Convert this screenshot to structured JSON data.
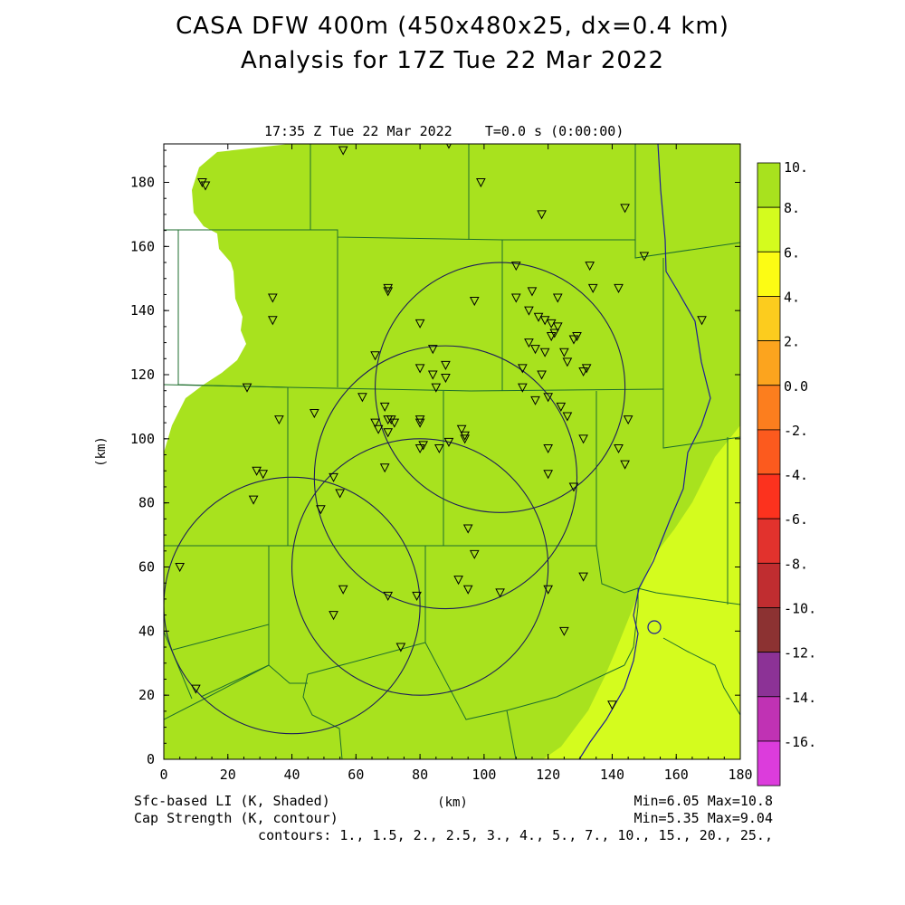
{
  "title_line1": "CASA DFW 400m (450x480x25, dx=0.4 km)",
  "title_line2": "Analysis for 17Z Tue 22 Mar 2022",
  "valid_time": "17:35 Z Tue 22 Mar 2022    T=0.0 s (0:00:00)",
  "x_axis": {
    "label": "(km)",
    "range": [
      0,
      180
    ],
    "ticks": [
      "0",
      "20",
      "40",
      "60",
      "80",
      "100",
      "120",
      "140",
      "160",
      "180"
    ]
  },
  "y_axis": {
    "label": "(km)",
    "range": [
      0,
      192
    ],
    "ticks": [
      "0",
      "20",
      "40",
      "60",
      "80",
      "100",
      "120",
      "140",
      "160",
      "180"
    ]
  },
  "footer": {
    "shaded_label": "Sfc-based LI (K, Shaded)",
    "contour_label": "Cap Strength (K, contour)",
    "shaded_stats": "Min=6.05 Max=10.8",
    "contour_stats": "Min=5.35 Max=9.04",
    "contour_levels": "contours: 1., 1.5, 2., 2.5, 3., 4., 5., 7., 10., 15., 20., 25.,"
  },
  "colorbar": {
    "labels": [
      "10.",
      "8.",
      "6.",
      "4.",
      "2.",
      "0.0",
      "-2.",
      "-4.",
      "-6.",
      "-8.",
      "-10.",
      "-12.",
      "-14.",
      "-16."
    ],
    "colors": [
      "#a8e21e",
      "#d4fc1e",
      "#fcfc14",
      "#fccc1e",
      "#fca41e",
      "#fc7e1e",
      "#fc5a1e",
      "#fc321e",
      "#e2322d",
      "#c02d30",
      "#8c3232",
      "#8c3296",
      "#c032b4",
      "#dc3cdc"
    ]
  },
  "map_colors": {
    "background_field": "#a8e21e",
    "warm_field": "#d4fc1e",
    "county_lines": "#1e6e2d",
    "river": "#1e1e96",
    "radar_rings": "#1e1e5a",
    "no_data": "#ffffff"
  },
  "radar_rings_km": [
    {
      "cx": 105,
      "cy": 116,
      "r": 39
    },
    {
      "cx": 88,
      "cy": 88,
      "r": 41
    },
    {
      "cx": 40,
      "cy": 48,
      "r": 40
    },
    {
      "cx": 80,
      "cy": 60,
      "r": 40
    }
  ],
  "stations_km": [
    [
      12,
      180
    ],
    [
      13,
      179
    ],
    [
      56,
      190
    ],
    [
      89,
      192
    ],
    [
      99,
      180
    ],
    [
      118,
      170
    ],
    [
      144,
      172
    ],
    [
      150,
      157
    ],
    [
      34,
      144
    ],
    [
      34,
      137
    ],
    [
      70,
      147
    ],
    [
      70,
      146
    ],
    [
      80,
      136
    ],
    [
      84,
      128
    ],
    [
      88,
      123
    ],
    [
      80,
      122
    ],
    [
      84,
      120
    ],
    [
      85,
      116
    ],
    [
      88,
      119
    ],
    [
      97,
      143
    ],
    [
      110,
      154
    ],
    [
      110,
      144
    ],
    [
      114,
      140
    ],
    [
      115,
      146
    ],
    [
      123,
      144
    ],
    [
      133,
      154
    ],
    [
      134,
      147
    ],
    [
      142,
      147
    ],
    [
      114,
      130
    ],
    [
      116,
      128
    ],
    [
      119,
      127
    ],
    [
      117,
      138
    ],
    [
      119,
      137
    ],
    [
      121,
      136
    ],
    [
      122,
      133
    ],
    [
      121,
      132
    ],
    [
      123,
      135
    ],
    [
      125,
      127
    ],
    [
      126,
      124
    ],
    [
      128,
      131
    ],
    [
      129,
      132
    ],
    [
      131,
      121
    ],
    [
      132,
      122
    ],
    [
      118,
      120
    ],
    [
      112,
      122
    ],
    [
      112,
      116
    ],
    [
      116,
      112
    ],
    [
      120,
      113
    ],
    [
      124,
      110
    ],
    [
      126,
      107
    ],
    [
      142,
      97
    ],
    [
      145,
      106
    ],
    [
      144,
      92
    ],
    [
      131,
      100
    ],
    [
      128,
      85
    ],
    [
      120,
      97
    ],
    [
      120,
      89
    ],
    [
      93,
      103
    ],
    [
      94,
      101
    ],
    [
      94,
      100
    ],
    [
      89,
      99
    ],
    [
      86,
      97
    ],
    [
      80,
      106
    ],
    [
      80,
      105
    ],
    [
      81,
      98
    ],
    [
      80,
      97
    ],
    [
      66,
      126
    ],
    [
      62,
      113
    ],
    [
      66,
      105
    ],
    [
      67,
      103
    ],
    [
      69,
      110
    ],
    [
      70,
      106
    ],
    [
      71,
      106
    ],
    [
      72,
      105
    ],
    [
      70,
      102
    ],
    [
      69,
      91
    ],
    [
      47,
      108
    ],
    [
      26,
      116
    ],
    [
      36,
      106
    ],
    [
      29,
      90
    ],
    [
      31,
      89
    ],
    [
      28,
      81
    ],
    [
      5,
      60
    ],
    [
      10,
      22
    ],
    [
      53,
      88
    ],
    [
      55,
      83
    ],
    [
      49,
      78
    ],
    [
      56,
      53
    ],
    [
      53,
      45
    ],
    [
      70,
      51
    ],
    [
      79,
      51
    ],
    [
      74,
      35
    ],
    [
      92,
      56
    ],
    [
      95,
      53
    ],
    [
      95,
      72
    ],
    [
      97,
      64
    ],
    [
      105,
      52
    ],
    [
      120,
      53
    ],
    [
      131,
      57
    ],
    [
      125,
      40
    ],
    [
      140,
      17
    ],
    [
      168,
      137
    ]
  ]
}
